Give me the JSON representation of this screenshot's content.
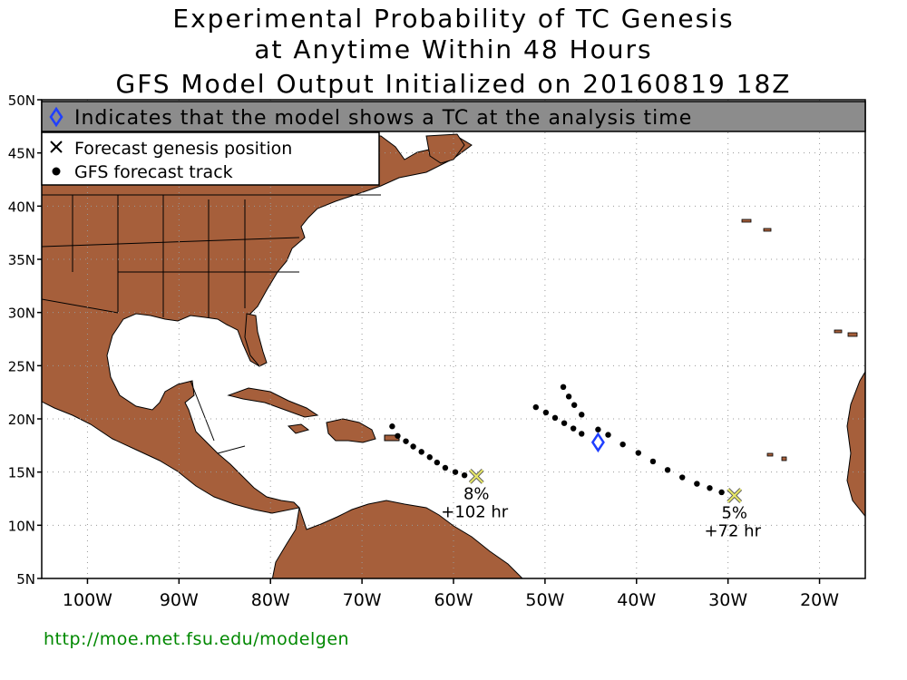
{
  "title": {
    "line1": "Experimental Probability of TC Genesis",
    "line2": "at Anytime Within 48 Hours",
    "line3": "GFS Model Output Initialized on 20160819 18Z"
  },
  "banner": {
    "text": "Indicates that the model shows a TC at the analysis time",
    "background": "#8c8c8c",
    "icon": "diamond-icon"
  },
  "legend": {
    "genesis_label": "Forecast genesis position",
    "track_label": "GFS forecast track",
    "genesis_icon": "x-mark-icon",
    "track_icon": "dot-icon"
  },
  "axes": {
    "lat_ticks": [
      "50N",
      "45N",
      "40N",
      "35N",
      "30N",
      "25N",
      "20N",
      "15N",
      "10N",
      "5N"
    ],
    "lon_ticks": [
      "100W",
      "90W",
      "80W",
      "70W",
      "60W",
      "50W",
      "40W",
      "30W",
      "20W"
    ],
    "lon_range": [
      -105,
      -15
    ],
    "lat_range": [
      5,
      50
    ],
    "grid": true
  },
  "colors": {
    "land": "#a65f3b",
    "ocean": "#ffffff",
    "track": "#000000",
    "genesis": "#e6e668",
    "diamond": "#1f3fff",
    "url": "#008800"
  },
  "systems": [
    {
      "probability": "8%",
      "lead_time": "+102 hr",
      "genesis": {
        "lon": -57.5,
        "lat": 14.6
      },
      "track": [
        {
          "lon": -66.7,
          "lat": 19.3
        },
        {
          "lon": -66.1,
          "lat": 18.4
        },
        {
          "lon": -65.2,
          "lat": 17.9
        },
        {
          "lon": -64.4,
          "lat": 17.4
        },
        {
          "lon": -63.5,
          "lat": 16.9
        },
        {
          "lon": -62.6,
          "lat": 16.4
        },
        {
          "lon": -61.8,
          "lat": 15.9
        },
        {
          "lon": -60.9,
          "lat": 15.4
        },
        {
          "lon": -59.8,
          "lat": 15.0
        },
        {
          "lon": -58.8,
          "lat": 14.7
        }
      ]
    },
    {
      "probability": "5%",
      "lead_time": "+72 hr",
      "genesis": {
        "lon": -29.3,
        "lat": 12.8
      },
      "track": [
        {
          "lon": -51.0,
          "lat": 21.1
        },
        {
          "lon": -49.9,
          "lat": 20.6
        },
        {
          "lon": -48.9,
          "lat": 20.1
        },
        {
          "lon": -47.9,
          "lat": 19.6
        },
        {
          "lon": -46.9,
          "lat": 19.1
        },
        {
          "lon": -46.0,
          "lat": 18.6
        },
        {
          "lon": -48.0,
          "lat": 23.0
        },
        {
          "lon": -47.4,
          "lat": 22.1
        },
        {
          "lon": -46.8,
          "lat": 21.3
        },
        {
          "lon": -46.0,
          "lat": 20.4
        },
        {
          "lon": -44.2,
          "lat": 19.0
        },
        {
          "lon": -43.1,
          "lat": 18.5
        },
        {
          "lon": -41.5,
          "lat": 17.6
        },
        {
          "lon": -39.8,
          "lat": 16.8
        },
        {
          "lon": -38.2,
          "lat": 16.0
        },
        {
          "lon": -36.6,
          "lat": 15.2
        },
        {
          "lon": -35.0,
          "lat": 14.5
        },
        {
          "lon": -33.4,
          "lat": 13.9
        },
        {
          "lon": -32.0,
          "lat": 13.5
        },
        {
          "lon": -30.7,
          "lat": 13.1
        }
      ]
    }
  ],
  "analysis_tc": [
    {
      "lon": -44.2,
      "lat": 17.8
    }
  ],
  "footer": {
    "url": "http://moe.met.fsu.edu/modelgen"
  }
}
